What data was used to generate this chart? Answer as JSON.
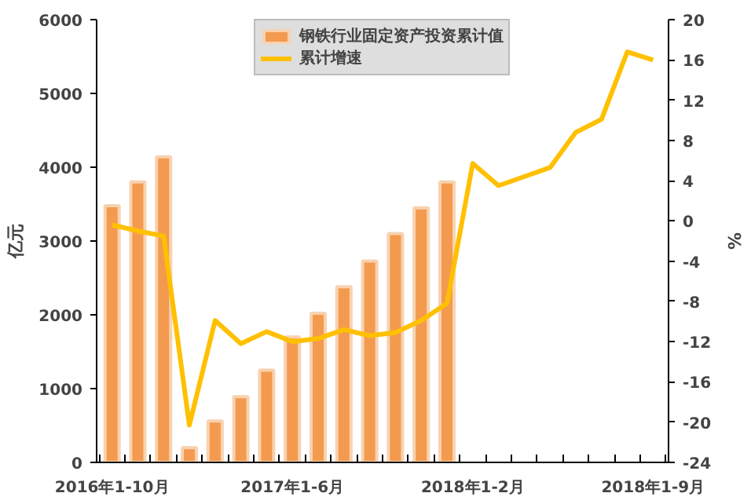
{
  "chart_data": {
    "type": "bar",
    "categories": [
      "2016年1-10月",
      null,
      null,
      null,
      null,
      null,
      null,
      "2017年1-6月",
      null,
      null,
      null,
      null,
      null,
      null,
      "2018年1-2月",
      null,
      null,
      null,
      null,
      null,
      null,
      "2018年1-9月"
    ],
    "ylabel": "亿元",
    "y2label": "%",
    "series": [
      {
        "name": "钢铁行业固定资产投资累计值",
        "color": "#f39a4f",
        "values": [
          3480,
          3800,
          4140,
          200,
          560,
          890,
          1250,
          1700,
          2020,
          2380,
          2730,
          3100,
          3450,
          3800,
          null,
          null,
          null,
          null,
          null,
          null,
          null,
          null
        ]
      },
      {
        "name": "累计增速",
        "type": "line",
        "axis": "y2",
        "color": "#ffc000",
        "values": [
          -0.4,
          -1.0,
          -1.5,
          -20.3,
          -9.9,
          -12.2,
          -11.0,
          -12.0,
          -11.7,
          -10.8,
          -11.4,
          -11.1,
          -9.9,
          -8.2,
          5.7,
          3.5,
          4.4,
          5.3,
          8.8,
          10.1,
          16.8,
          16.0
        ]
      }
    ],
    "ylim": [
      0,
      6000
    ],
    "yticks": [
      0,
      1000,
      2000,
      3000,
      4000,
      5000,
      6000
    ],
    "y2lim": [
      -24,
      20
    ],
    "y2ticks": [
      -24,
      -20,
      -16,
      -12,
      -8,
      -4,
      0,
      4,
      8,
      12,
      16,
      20
    ],
    "grid": false,
    "legend": "top"
  }
}
